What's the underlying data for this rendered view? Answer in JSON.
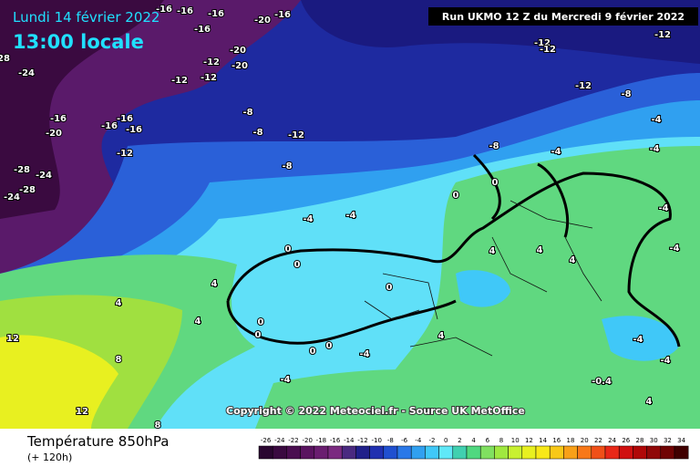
{
  "header": {
    "date": "Lundi 14 février 2022",
    "time": "13:00 locale",
    "run": "Run UKMO 12 Z du Mercredi 9 février 2022"
  },
  "map": {
    "contour_labels": [
      "-16",
      "-16",
      "-16",
      "-20",
      "-16",
      "-16",
      "-12",
      "-20",
      "-12",
      "-12",
      "-20",
      "-24",
      "-16",
      "-20",
      "-16",
      "-16",
      "-16",
      "-12",
      "-28",
      "-24",
      "-28",
      "-24",
      "-8",
      "-8",
      "-12",
      "-8",
      "-12",
      "-12",
      "-12",
      "-12",
      "-8",
      "-4",
      "-4",
      "-4",
      "-8",
      "0",
      "0",
      "-4",
      "-4",
      "0",
      "0",
      "0",
      "0",
      "0",
      "0",
      "0",
      "-4",
      "-4",
      "4",
      "4",
      "4",
      "12",
      "8",
      "12",
      "4",
      "4",
      "4",
      "4",
      "-4",
      "-4",
      "-0.4",
      "-4",
      "-4",
      "4",
      "8",
      "28"
    ]
  },
  "copyright": "Copyright © 2022 Meteociel.fr - Source UK MetOffice",
  "footer": {
    "title": "Température 850hPa",
    "lead": "(+ 120h)"
  },
  "legend": {
    "levels": [
      -26,
      -24,
      -22,
      -20,
      -18,
      -16,
      -14,
      -12,
      -10,
      -8,
      -6,
      -4,
      -2,
      0,
      2,
      4,
      6,
      8,
      10,
      12,
      14,
      16,
      18,
      20,
      22,
      24,
      26,
      28,
      30,
      32,
      34
    ],
    "colors": [
      "#2a0630",
      "#3a0a40",
      "#4a0e50",
      "#5a1460",
      "#6a1e70",
      "#7a2a80",
      "#4a2a80",
      "#20208a",
      "#2030b0",
      "#2050d0",
      "#2a78e8",
      "#30a0f0",
      "#40c8f8",
      "#60e8f8",
      "#40d0b0",
      "#50d880",
      "#80e060",
      "#a0e840",
      "#c8f030",
      "#e8f020",
      "#f8e818",
      "#f8c818",
      "#f8a018",
      "#f87818",
      "#f05018",
      "#e82818",
      "#d01010",
      "#b00808",
      "#900808",
      "#700404",
      "#400000"
    ]
  }
}
